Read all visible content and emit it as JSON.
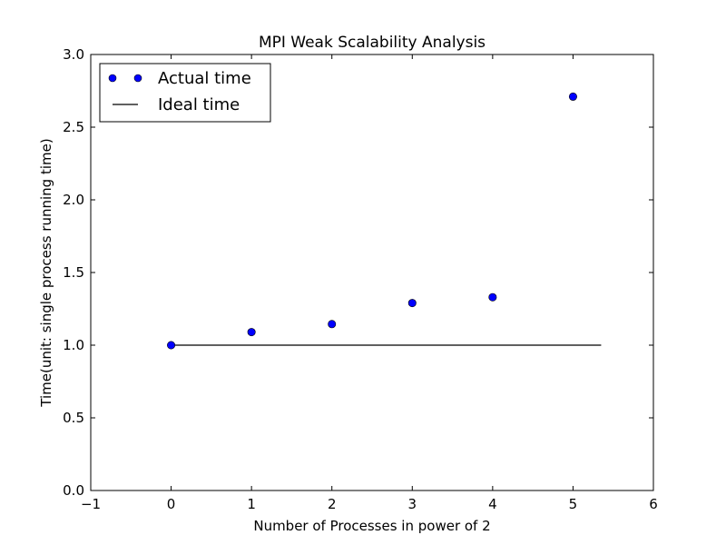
{
  "chart_data": {
    "type": "scatter",
    "title": "MPI Weak Scalability Analysis",
    "xlabel": "Number of Processes in power of 2",
    "ylabel": "Time(unit: single process running time)",
    "xlim": [
      -1,
      6
    ],
    "ylim": [
      0.0,
      3.0
    ],
    "xticks": [
      -1,
      0,
      1,
      2,
      3,
      4,
      5,
      6
    ],
    "xtick_labels": [
      "−1",
      "0",
      "1",
      "2",
      "3",
      "4",
      "5",
      "6"
    ],
    "yticks": [
      0.0,
      0.5,
      1.0,
      1.5,
      2.0,
      2.5,
      3.0
    ],
    "ytick_labels": [
      "0.0",
      "0.5",
      "1.0",
      "1.5",
      "2.0",
      "2.5",
      "3.0"
    ],
    "grid": false,
    "legend_position": "top-left",
    "series": [
      {
        "name": "Actual time",
        "style": "markers",
        "color": "#0000ff",
        "x": [
          0,
          1,
          2,
          3,
          4,
          5
        ],
        "y": [
          1.0,
          1.09,
          1.145,
          1.29,
          1.33,
          2.71
        ]
      },
      {
        "name": "Ideal time",
        "style": "line",
        "color": "#000000",
        "x": [
          0,
          5.35
        ],
        "y": [
          1.0,
          1.0
        ]
      }
    ]
  }
}
